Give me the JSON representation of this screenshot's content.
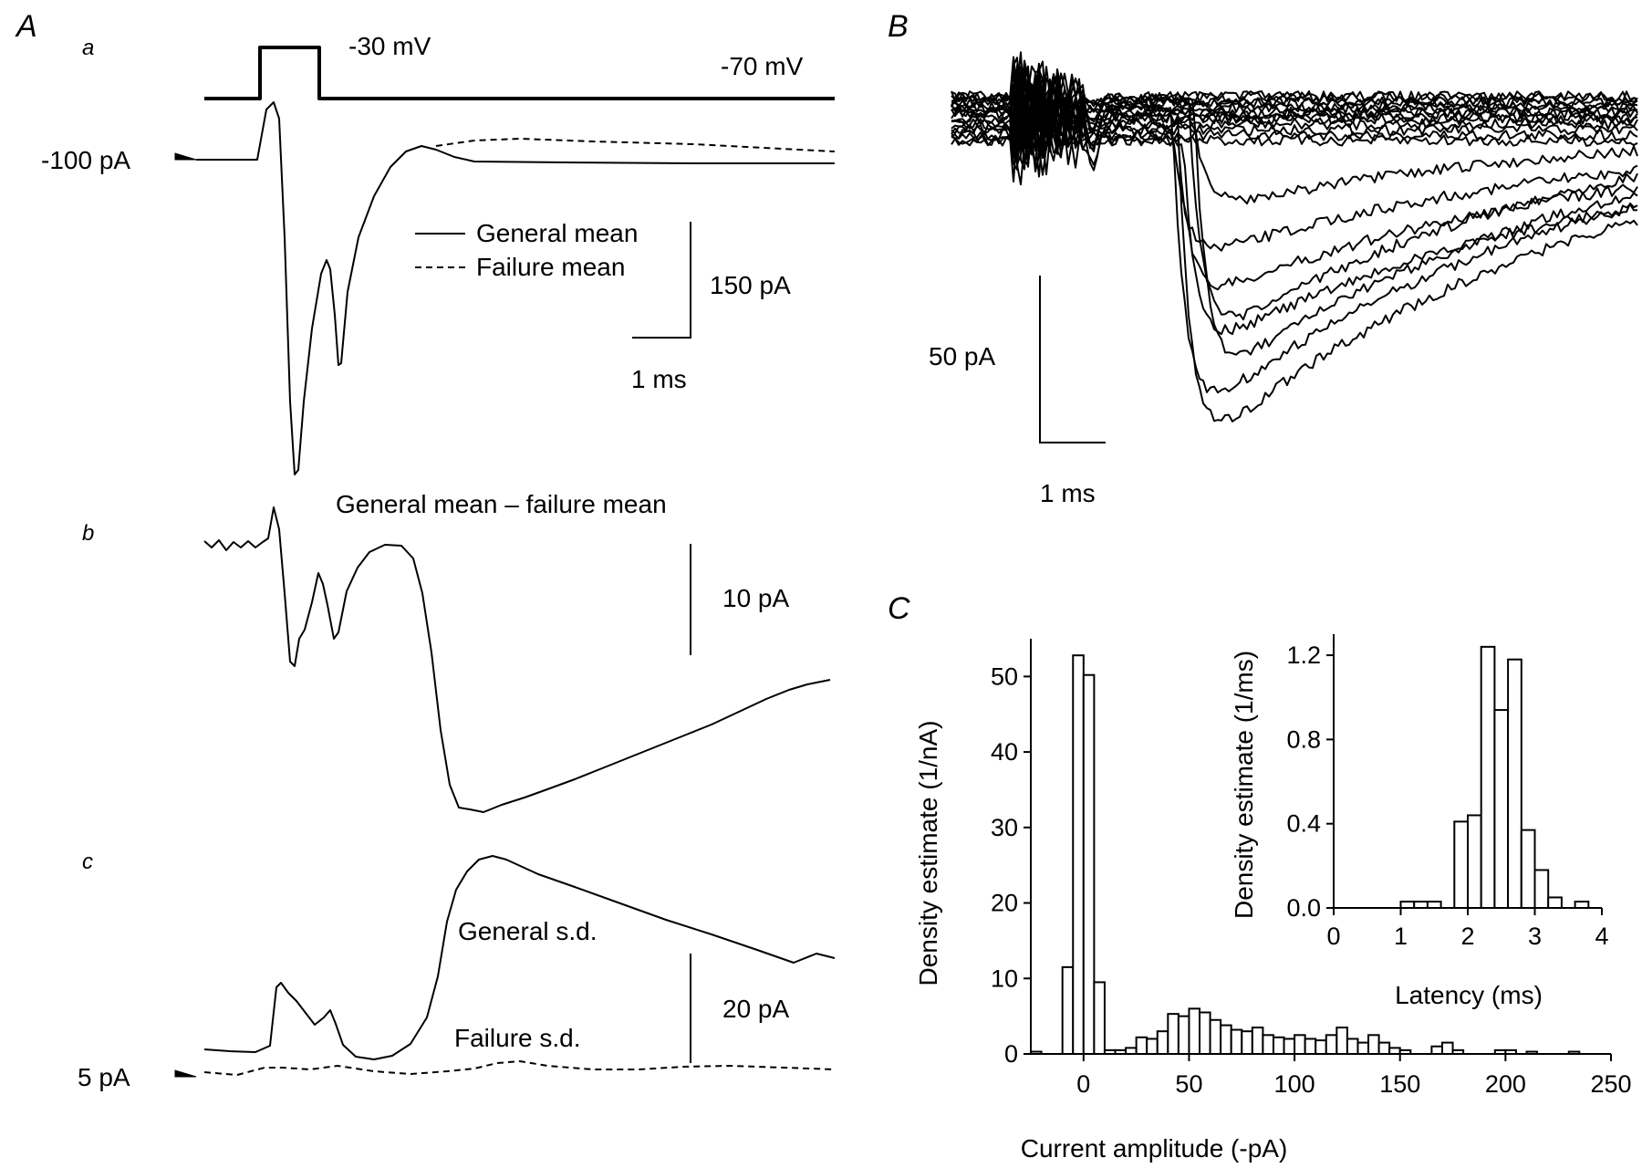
{
  "panels": {
    "A": {
      "label": "A",
      "a": {
        "sublabel": "a",
        "step_voltage": "-30 mV",
        "hold_voltage": "-70 mV",
        "baseline_label": "-100 pA",
        "legend": [
          "General mean",
          "Failure mean"
        ],
        "scale_y": "150 pA",
        "scale_x": "1 ms"
      },
      "b": {
        "sublabel": "b",
        "title": "General mean – failure mean",
        "scale_y": "10 pA"
      },
      "c": {
        "sublabel": "c",
        "general_label": "General s.d.",
        "failure_label": "Failure s.d.",
        "scale_y": "20 pA",
        "baseline_label": "5 pA"
      }
    },
    "B": {
      "label": "B",
      "scale_y": "50 pA",
      "scale_x": "1 ms"
    },
    "C": {
      "label": "C"
    }
  },
  "chart_data": [
    {
      "type": "bar",
      "panel": "C-main",
      "xlabel": "Current amplitude (-pA)",
      "ylabel": "Density estimate (1/nA)",
      "xlim": [
        -25,
        250
      ],
      "ylim": [
        0,
        55
      ],
      "xticks": [
        0,
        50,
        100,
        150,
        200,
        250
      ],
      "yticks": [
        0,
        10,
        20,
        30,
        40,
        50
      ],
      "bins": [
        {
          "x0": -25,
          "x1": -20,
          "y": 0.3
        },
        {
          "x0": -10,
          "x1": -5,
          "y": 11.5
        },
        {
          "x0": -5,
          "x1": 0,
          "y": 52.8
        },
        {
          "x0": 0,
          "x1": 5,
          "y": 50.2
        },
        {
          "x0": 5,
          "x1": 10,
          "y": 9.5
        },
        {
          "x0": 10,
          "x1": 15,
          "y": 0.5
        },
        {
          "x0": 15,
          "x1": 20,
          "y": 0.5
        },
        {
          "x0": 20,
          "x1": 25,
          "y": 0.8
        },
        {
          "x0": 25,
          "x1": 30,
          "y": 2.2
        },
        {
          "x0": 30,
          "x1": 35,
          "y": 2.0
        },
        {
          "x0": 35,
          "x1": 40,
          "y": 3.0
        },
        {
          "x0": 40,
          "x1": 45,
          "y": 5.3
        },
        {
          "x0": 45,
          "x1": 50,
          "y": 5.0
        },
        {
          "x0": 50,
          "x1": 55,
          "y": 6.0
        },
        {
          "x0": 55,
          "x1": 60,
          "y": 5.5
        },
        {
          "x0": 60,
          "x1": 65,
          "y": 4.5
        },
        {
          "x0": 65,
          "x1": 70,
          "y": 3.8
        },
        {
          "x0": 70,
          "x1": 75,
          "y": 3.2
        },
        {
          "x0": 75,
          "x1": 80,
          "y": 3.0
        },
        {
          "x0": 80,
          "x1": 85,
          "y": 3.5
        },
        {
          "x0": 85,
          "x1": 90,
          "y": 2.5
        },
        {
          "x0": 90,
          "x1": 95,
          "y": 2.2
        },
        {
          "x0": 95,
          "x1": 100,
          "y": 2.0
        },
        {
          "x0": 100,
          "x1": 105,
          "y": 2.5
        },
        {
          "x0": 105,
          "x1": 110,
          "y": 2.0
        },
        {
          "x0": 110,
          "x1": 115,
          "y": 1.8
        },
        {
          "x0": 115,
          "x1": 120,
          "y": 2.5
        },
        {
          "x0": 120,
          "x1": 125,
          "y": 3.5
        },
        {
          "x0": 125,
          "x1": 130,
          "y": 2.0
        },
        {
          "x0": 130,
          "x1": 135,
          "y": 1.5
        },
        {
          "x0": 135,
          "x1": 140,
          "y": 2.5
        },
        {
          "x0": 140,
          "x1": 145,
          "y": 1.5
        },
        {
          "x0": 145,
          "x1": 150,
          "y": 0.8
        },
        {
          "x0": 150,
          "x1": 155,
          "y": 0.5
        },
        {
          "x0": 165,
          "x1": 170,
          "y": 1.0
        },
        {
          "x0": 170,
          "x1": 175,
          "y": 1.5
        },
        {
          "x0": 175,
          "x1": 180,
          "y": 0.5
        },
        {
          "x0": 195,
          "x1": 200,
          "y": 0.5
        },
        {
          "x0": 200,
          "x1": 205,
          "y": 0.5
        },
        {
          "x0": 210,
          "x1": 215,
          "y": 0.3
        },
        {
          "x0": 230,
          "x1": 235,
          "y": 0.3
        }
      ]
    },
    {
      "type": "bar",
      "panel": "C-inset",
      "xlabel": "Latency (ms)",
      "ylabel": "Density estimate (1/ms)",
      "xlim": [
        0,
        4
      ],
      "ylim": [
        0,
        1.3
      ],
      "xticks": [
        0,
        1,
        2,
        3,
        4
      ],
      "yticks": [
        "0.0",
        "0.4",
        "0.8",
        "1.2"
      ],
      "bins": [
        {
          "x0": 1.0,
          "x1": 1.2,
          "y": 0.03
        },
        {
          "x0": 1.2,
          "x1": 1.4,
          "y": 0.03
        },
        {
          "x0": 1.4,
          "x1": 1.6,
          "y": 0.03
        },
        {
          "x0": 1.8,
          "x1": 2.0,
          "y": 0.41
        },
        {
          "x0": 2.0,
          "x1": 2.2,
          "y": 0.44
        },
        {
          "x0": 2.2,
          "x1": 2.4,
          "y": 1.24
        },
        {
          "x0": 2.4,
          "x1": 2.6,
          "y": 0.94
        },
        {
          "x0": 2.6,
          "x1": 2.8,
          "y": 1.18
        },
        {
          "x0": 2.8,
          "x1": 3.0,
          "y": 0.37
        },
        {
          "x0": 3.0,
          "x1": 3.2,
          "y": 0.18
        },
        {
          "x0": 3.2,
          "x1": 3.4,
          "y": 0.05
        },
        {
          "x0": 3.6,
          "x1": 3.8,
          "y": 0.03
        }
      ]
    }
  ]
}
